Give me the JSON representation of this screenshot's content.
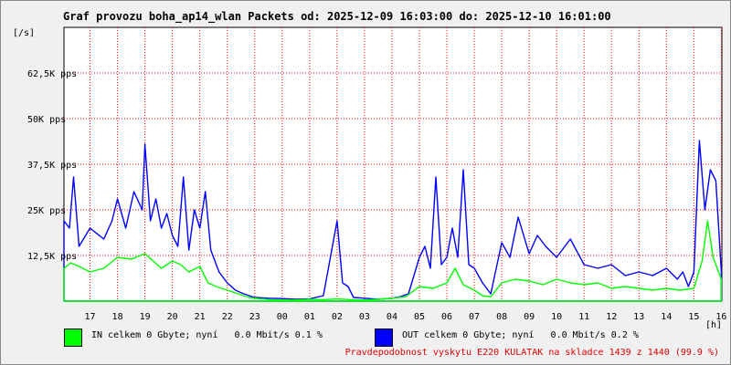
{
  "title": "Graf provozu boha_ap14_wlan Packets od: 2025-12-09 16:03:00 do: 2025-12-10 16:01:00",
  "legend": {
    "in_text": "IN celkem 0 Gbyte; nyní   0.0 Mbit/s 0.1 %",
    "out_text": "OUT celkem 0 Gbyte; nyní   0.0 Mbit/s 0.2 %"
  },
  "note": "Pravdepodobnost vyskytu E220 KULATAK na skladce 1439 z 1440 (99.9 %)",
  "colors": {
    "in": "#00ff00",
    "out": "#0000ff",
    "grid": "#ff0000",
    "note": "#e00000"
  },
  "chart_data": {
    "type": "area",
    "yunit": "[/s]",
    "xunit": "[h]",
    "ylim": [
      0,
      75000
    ],
    "ytick_values": [
      12500,
      25000,
      37500,
      50000,
      62500
    ],
    "ytick_labels": [
      "12,5K pps",
      "25K pps",
      "37,5K pps",
      "50K pps",
      "62,5K pps"
    ],
    "xlim": [
      16.05,
      40.02
    ],
    "xtick_values": [
      17,
      18,
      19,
      20,
      21,
      22,
      23,
      24,
      25,
      26,
      27,
      28,
      29,
      30,
      31,
      32,
      33,
      34,
      35,
      36,
      37,
      38,
      39,
      40
    ],
    "xtick_labels": [
      "17",
      "18",
      "19",
      "20",
      "21",
      "22",
      "23",
      "00",
      "01",
      "02",
      "03",
      "04",
      "05",
      "06",
      "07",
      "08",
      "09",
      "10",
      "11",
      "12",
      "13",
      "14",
      "15",
      "16"
    ],
    "grid": true,
    "series": [
      {
        "name": "IN",
        "x": [
          16.05,
          16.3,
          16.6,
          17.0,
          17.5,
          18.0,
          18.5,
          19.0,
          19.3,
          19.6,
          20.0,
          20.3,
          20.6,
          21.0,
          21.3,
          21.6,
          22.0,
          22.4,
          22.8,
          23.2,
          23.6,
          24.0,
          24.5,
          25.0,
          25.5,
          26.0,
          26.5,
          27.0,
          27.5,
          28.0,
          28.5,
          29.0,
          29.5,
          30.0,
          30.3,
          30.6,
          31.0,
          31.3,
          31.6,
          32.0,
          32.5,
          33.0,
          33.5,
          34.0,
          34.5,
          35.0,
          35.5,
          36.0,
          36.5,
          37.0,
          37.5,
          38.0,
          38.5,
          39.0,
          39.3,
          39.5,
          39.7,
          40.0
        ],
        "values": [
          9000,
          10500,
          9500,
          8000,
          9000,
          12000,
          11500,
          13000,
          11000,
          9000,
          11000,
          10000,
          8000,
          9500,
          5000,
          4000,
          3000,
          2000,
          1000,
          600,
          400,
          300,
          300,
          500,
          400,
          600,
          400,
          300,
          500,
          800,
          1200,
          4000,
          3500,
          5000,
          9000,
          4500,
          3000,
          1500,
          1200,
          5000,
          6000,
          5500,
          4500,
          6000,
          5000,
          4500,
          5000,
          3500,
          4000,
          3500,
          3000,
          3500,
          3000,
          3500,
          11000,
          22000,
          12000,
          6000
        ]
      },
      {
        "name": "OUT",
        "x": [
          16.05,
          16.25,
          16.4,
          16.6,
          17.0,
          17.5,
          17.8,
          18.0,
          18.3,
          18.6,
          18.9,
          19.0,
          19.2,
          19.4,
          19.6,
          19.8,
          20.0,
          20.2,
          20.4,
          20.6,
          20.8,
          21.0,
          21.2,
          21.4,
          21.7,
          22.0,
          22.3,
          22.6,
          23.0,
          23.5,
          24.0,
          24.5,
          25.0,
          25.5,
          26.0,
          26.2,
          26.4,
          26.6,
          27.0,
          27.5,
          28.0,
          28.3,
          28.6,
          29.0,
          29.2,
          29.4,
          29.6,
          29.8,
          30.0,
          30.2,
          30.4,
          30.6,
          30.8,
          31.0,
          31.3,
          31.6,
          32.0,
          32.3,
          32.6,
          33.0,
          33.3,
          33.6,
          34.0,
          34.5,
          35.0,
          35.5,
          36.0,
          36.5,
          37.0,
          37.5,
          38.0,
          38.4,
          38.6,
          38.8,
          39.0,
          39.2,
          39.4,
          39.6,
          39.8,
          40.0
        ],
        "values": [
          22000,
          20000,
          34000,
          15000,
          20000,
          17000,
          22000,
          28000,
          20000,
          30000,
          25000,
          43000,
          22000,
          28000,
          20000,
          24000,
          18000,
          15000,
          34000,
          14000,
          25000,
          20000,
          30000,
          14000,
          8000,
          5000,
          3000,
          2000,
          1000,
          800,
          700,
          500,
          600,
          1500,
          22000,
          5000,
          4000,
          1000,
          800,
          500,
          800,
          1200,
          2000,
          12000,
          15000,
          9000,
          34000,
          10000,
          12000,
          20000,
          12000,
          36000,
          10000,
          9000,
          5000,
          2000,
          16000,
          12000,
          23000,
          13000,
          18000,
          15000,
          12000,
          17000,
          10000,
          9000,
          10000,
          7000,
          8000,
          7000,
          9000,
          6000,
          8000,
          4000,
          8000,
          44000,
          25000,
          36000,
          33000,
          8000
        ]
      }
    ]
  }
}
